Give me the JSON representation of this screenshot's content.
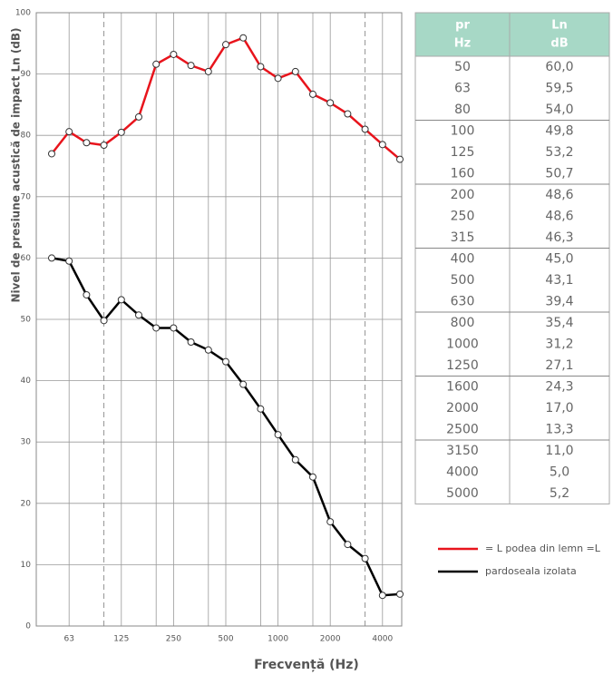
{
  "chart_data": {
    "type": "line",
    "ylabel": "Nivel de presiune acustică de impact Ln (dB)",
    "xlabel": "Frecvență (Hz)",
    "categories": [
      null,
      "63",
      null,
      null,
      "125",
      null,
      null,
      "250",
      null,
      null,
      "500",
      null,
      null,
      "1000",
      null,
      null,
      "2000",
      null,
      null,
      "4000",
      null
    ],
    "series": [
      {
        "name": "= L podea din lemn =L",
        "color": "#e8141c",
        "values": [
          77,
          80.6,
          78.8,
          78.4,
          80.5,
          83,
          91.6,
          93.2,
          91.4,
          90.4,
          94.8,
          95.9,
          91.2,
          89.3,
          90.4,
          86.7,
          85.3,
          83.5,
          81,
          78.5,
          76.1
        ]
      },
      {
        "name": "pardoseala izolata",
        "color": "#000000",
        "values": [
          60,
          59.5,
          54,
          49.8,
          53.2,
          50.7,
          48.6,
          48.6,
          46.3,
          45,
          43.1,
          39.4,
          35.4,
          31.2,
          27.1,
          24.3,
          17,
          13.3,
          11,
          5,
          5.2
        ]
      }
    ],
    "ylim": [
      0,
      100
    ],
    "yticks": [
      0,
      10,
      20,
      30,
      40,
      50,
      60,
      70,
      80,
      90,
      100
    ],
    "grid": true
  },
  "table": {
    "header": [
      [
        "pr",
        "Hz"
      ],
      [
        "Ln",
        "dB"
      ]
    ],
    "rows": [
      [
        "50",
        "60,0"
      ],
      [
        "63",
        "59,5"
      ],
      [
        "80",
        "54,0"
      ],
      [
        "100",
        "49,8"
      ],
      [
        "125",
        "53,2"
      ],
      [
        "160",
        "50,7"
      ],
      [
        "200",
        "48,6"
      ],
      [
        "250",
        "48,6"
      ],
      [
        "315",
        "46,3"
      ],
      [
        "400",
        "45,0"
      ],
      [
        "500",
        "43,1"
      ],
      [
        "630",
        "39,4"
      ],
      [
        "800",
        "35,4"
      ],
      [
        "1000",
        "31,2"
      ],
      [
        "1250",
        "27,1"
      ],
      [
        "1600",
        "24,3"
      ],
      [
        "2000",
        "17,0"
      ],
      [
        "2500",
        "13,3"
      ],
      [
        "3150",
        "11,0"
      ],
      [
        "4000",
        "5,0"
      ],
      [
        "5000",
        "5,2"
      ]
    ]
  }
}
